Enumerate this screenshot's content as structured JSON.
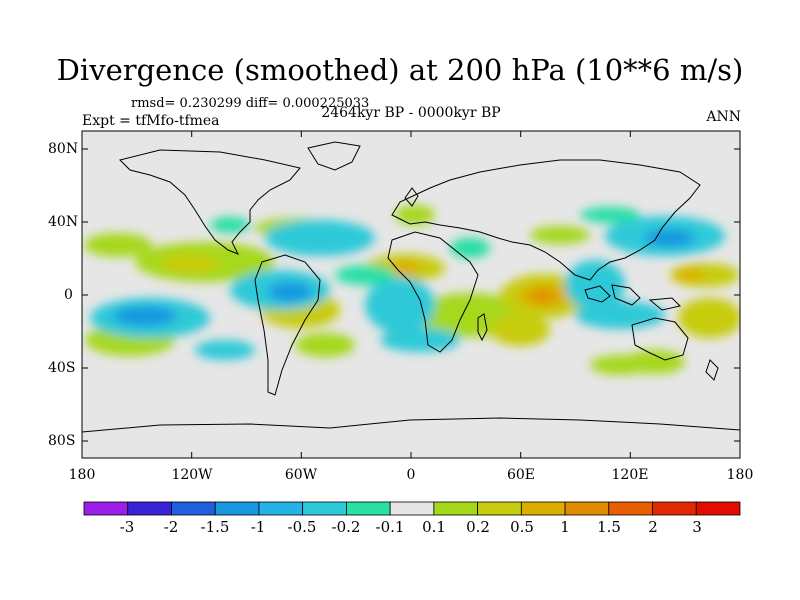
{
  "title": "Divergence (smoothed) at 200 hPa (10**6 m/s)",
  "stats": "rmsd= 0.230299 diff= 0.000225033",
  "experiment": "Expt = tfMfo-tfmea",
  "period": "2464kyr BP - 0000kyr BP",
  "season": "ANN",
  "map": {
    "lon_range": [
      -180,
      180
    ],
    "lat_range": [
      -90,
      90
    ],
    "y_ticks": [
      "80N",
      "40N",
      "0",
      "40S",
      "80S"
    ],
    "x_ticks": [
      "180",
      "120W",
      "60W",
      "0",
      "60E",
      "120E",
      "180"
    ]
  },
  "colorbar": {
    "labels": [
      "-3",
      "-2",
      "-1.5",
      "-1",
      "-0.5",
      "-0.2",
      "-0.1",
      "0.1",
      "0.2",
      "0.5",
      "1",
      "1.5",
      "2",
      "3"
    ],
    "colors": [
      "#9b1fe8",
      "#3a22d6",
      "#1f5fde",
      "#1798e0",
      "#25b2e6",
      "#2ec9d8",
      "#28dfa4",
      "#e6e6e6",
      "#a6d81a",
      "#c7cc10",
      "#dcae00",
      "#e08a00",
      "#e85e00",
      "#e22a00",
      "#e20d00"
    ]
  }
}
